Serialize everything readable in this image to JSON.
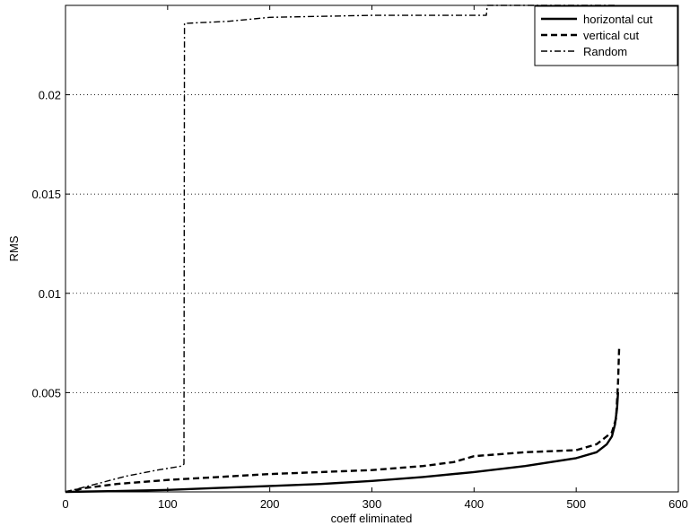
{
  "chart_data": {
    "type": "line",
    "title": "",
    "xlabel": "coeff eliminated",
    "ylabel": "RMS",
    "xlim": [
      0,
      600
    ],
    "ylim": [
      0,
      0.0245
    ],
    "xticks": [
      0,
      100,
      200,
      300,
      400,
      500,
      600
    ],
    "xtick_labels": [
      "0",
      "100",
      "200",
      "300",
      "400",
      "500",
      "600"
    ],
    "yticks": [
      0.005,
      0.01,
      0.015,
      0.02
    ],
    "ytick_labels": [
      "0.005",
      "0.01",
      "0.015",
      "0.02"
    ],
    "grid": "horizontal-dotted",
    "legend": "top-right",
    "series": [
      {
        "name": "horizontal cut",
        "style": "solid",
        "color": "#000000",
        "x": [
          0,
          50,
          100,
          150,
          200,
          250,
          300,
          350,
          400,
          450,
          500,
          520,
          530,
          535,
          538,
          540,
          541
        ],
        "y": [
          0,
          4e-05,
          0.0001,
          0.0002,
          0.0003,
          0.0004,
          0.00055,
          0.00075,
          0.001,
          0.0013,
          0.0017,
          0.002,
          0.0024,
          0.0028,
          0.0034,
          0.0042,
          0.005
        ]
      },
      {
        "name": "vertical cut",
        "style": "dashed",
        "color": "#000000",
        "x": [
          0,
          20,
          50,
          100,
          150,
          200,
          250,
          300,
          350,
          380,
          400,
          450,
          500,
          520,
          535,
          539,
          541,
          542
        ],
        "y": [
          0,
          0.0002,
          0.0004,
          0.0006,
          0.00075,
          0.0009,
          0.001,
          0.0011,
          0.0013,
          0.0015,
          0.0018,
          0.002,
          0.0021,
          0.0024,
          0.003,
          0.0037,
          0.0055,
          0.0072
        ]
      },
      {
        "name": "Random",
        "style": "dashdot",
        "color": "#000000",
        "x": [
          0,
          30,
          60,
          90,
          114,
          116,
          116.5,
          120,
          160,
          200,
          300,
          400,
          412,
          413,
          430,
          500,
          540
        ],
        "y": [
          0,
          0.0004,
          0.0008,
          0.0011,
          0.0013,
          0.0014,
          0.0236,
          0.0236,
          0.0237,
          0.0239,
          0.024,
          0.024,
          0.024,
          0.0245,
          0.0245,
          0.0245,
          0.0245
        ]
      }
    ]
  }
}
